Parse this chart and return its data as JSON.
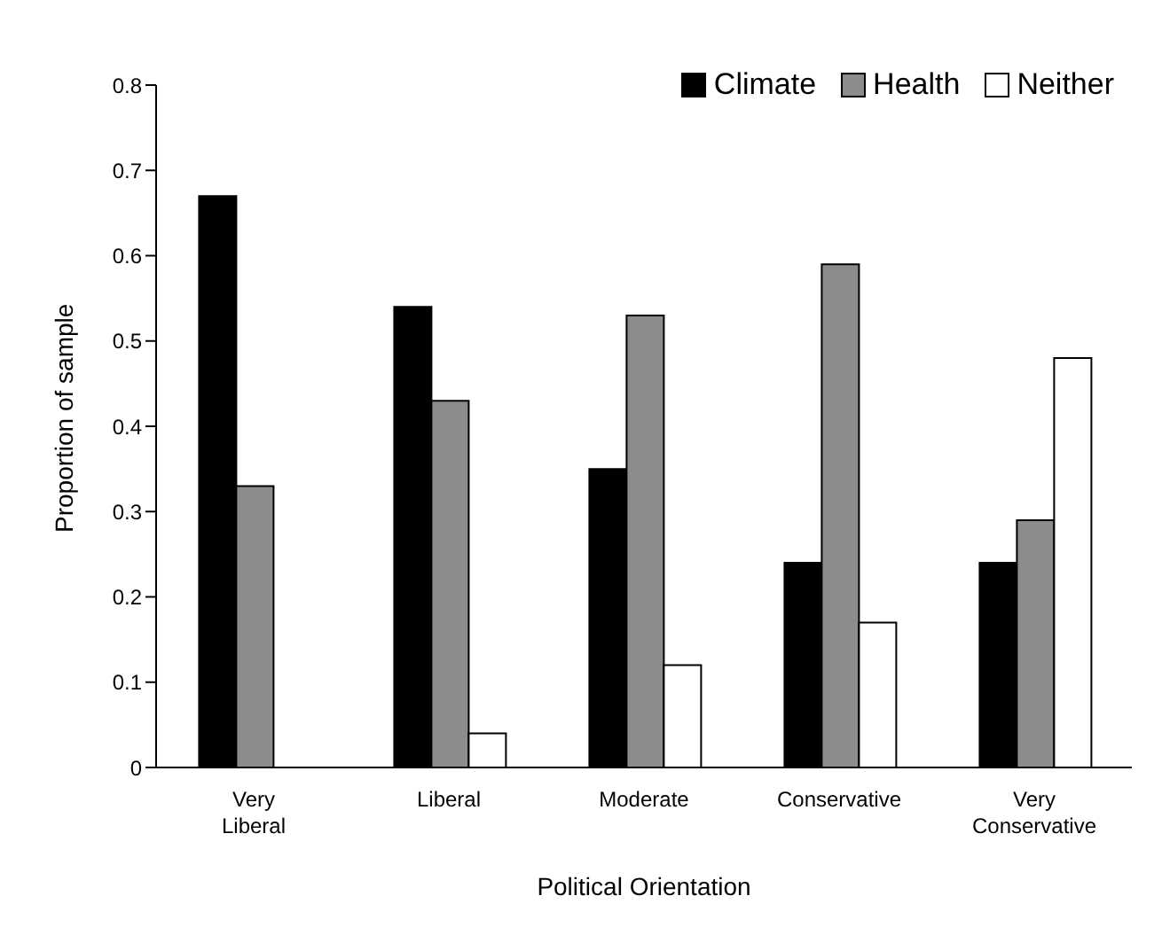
{
  "chart_data": {
    "type": "bar",
    "xlabel": "Political Orientation",
    "ylabel": "Proportion of sample",
    "categories": [
      "Very Liberal",
      "Liberal",
      "Moderate",
      "Conservative",
      "Very Conservative"
    ],
    "series": [
      {
        "name": "Climate",
        "color": "#000000",
        "values": [
          0.67,
          0.54,
          0.35,
          0.24,
          0.24
        ]
      },
      {
        "name": "Health",
        "color": "#8c8c8c",
        "values": [
          0.33,
          0.43,
          0.53,
          0.59,
          0.29
        ]
      },
      {
        "name": "Neither",
        "color": "#ffffff",
        "values": [
          0,
          0.04,
          0.12,
          0.17,
          0.48
        ]
      }
    ],
    "ylim": [
      0,
      0.8
    ],
    "yticks": [
      0,
      0.1,
      0.2,
      0.3,
      0.4,
      0.5,
      0.6,
      0.7,
      0.8
    ],
    "grid": false,
    "legend": "top right"
  }
}
